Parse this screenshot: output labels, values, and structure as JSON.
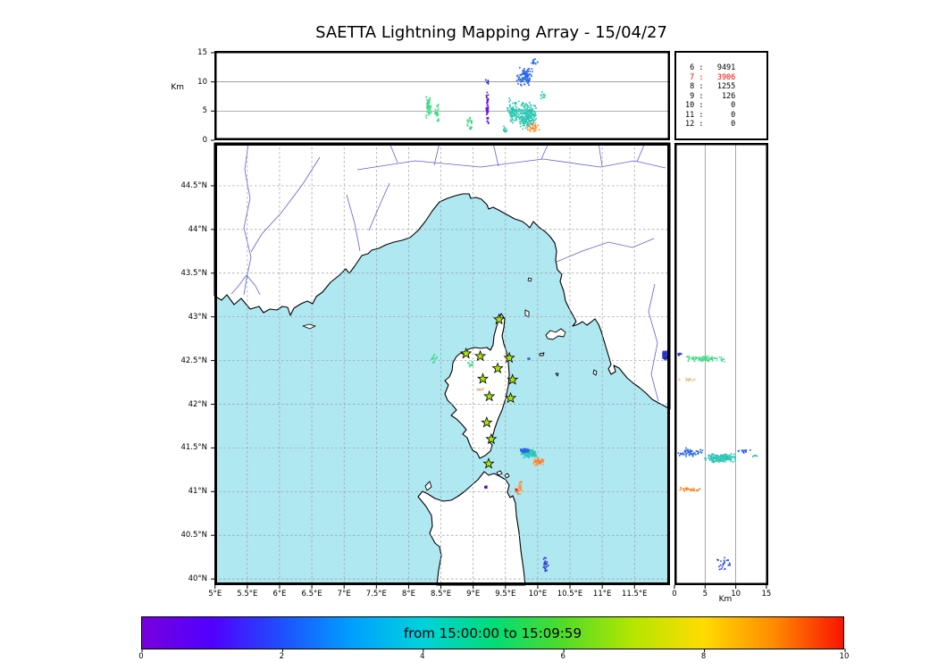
{
  "title": "SAETTA Lightning Mapping Array - 15/04/27",
  "alt_lon_panel": {
    "ylabel": "Km",
    "ytick_labels": [
      "0",
      "5",
      "10",
      "15"
    ],
    "ytick_values": [
      0,
      5,
      10,
      15
    ],
    "grid_values": [
      5,
      10
    ],
    "ymax": 15.3
  },
  "stats_panel": {
    "rows": [
      {
        "label": "6",
        "value": "9491",
        "color": "#000000"
      },
      {
        "label": "7",
        "value": "3906",
        "color": "#ff0000"
      },
      {
        "label": "8",
        "value": "1255",
        "color": "#000000"
      },
      {
        "label": "9",
        "value": "126",
        "color": "#000000"
      },
      {
        "label": "10",
        "value": "0",
        "color": "#000000"
      },
      {
        "label": "11",
        "value": "0",
        "color": "#000000"
      },
      {
        "label": "12",
        "value": "0",
        "color": "#000000"
      }
    ]
  },
  "map_panel": {
    "lon_min": 4.99,
    "lon_max": 12.05,
    "lat_min": 39.93,
    "lat_max": 44.99,
    "lon_tick_labels": [
      "5°E",
      "5.5°E",
      "6°E",
      "6.5°E",
      "7°E",
      "7.5°E",
      "8°E",
      "8.5°E",
      "9°E",
      "9.5°E",
      "10°E",
      "10.5°E",
      "11°E",
      "11.5°E"
    ],
    "lon_tick_values": [
      5,
      5.5,
      6,
      6.5,
      7,
      7.5,
      8,
      8.5,
      9,
      9.5,
      10,
      10.5,
      11,
      11.5
    ],
    "lat_tick_labels": [
      "40°N",
      "40.5°N",
      "41°N",
      "41.5°N",
      "42°N",
      "42.5°N",
      "43°N",
      "43.5°N",
      "44°N",
      "44.5°N"
    ],
    "lat_tick_values": [
      40,
      40.5,
      41,
      41.5,
      42,
      42.5,
      43,
      43.5,
      44,
      44.5
    ],
    "sea_color": "#b0e8f2",
    "land_color": "#ffffff",
    "station_color": "#a8e60a",
    "stations": [
      {
        "lon": 9.4,
        "lat": 42.97
      },
      {
        "lon": 8.89,
        "lat": 42.58
      },
      {
        "lon": 9.11,
        "lat": 42.55
      },
      {
        "lon": 9.56,
        "lat": 42.53
      },
      {
        "lon": 9.38,
        "lat": 42.41
      },
      {
        "lon": 9.15,
        "lat": 42.29
      },
      {
        "lon": 9.61,
        "lat": 42.28
      },
      {
        "lon": 9.25,
        "lat": 42.09
      },
      {
        "lon": 9.58,
        "lat": 42.07
      },
      {
        "lon": 9.21,
        "lat": 41.79
      },
      {
        "lon": 9.28,
        "lat": 41.6
      },
      {
        "lon": 9.24,
        "lat": 41.32
      }
    ]
  },
  "alt_lat_panel": {
    "xlabel": "Km",
    "xtick_labels": [
      "0",
      "5",
      "10",
      "15"
    ],
    "xtick_values": [
      0,
      5,
      10,
      15
    ],
    "grid_values": [
      5,
      10
    ],
    "xmax": 15.3
  },
  "colorbar": {
    "label": "from 15:00:00 to 15:09:59",
    "tick_labels": [
      "0",
      "2",
      "4",
      "6",
      "8",
      "10"
    ],
    "tick_values": [
      0,
      2,
      4,
      6,
      8,
      10
    ],
    "tick_max": 10,
    "gradient": [
      "#7800dc",
      "#5000ff",
      "#1e50ff",
      "#00a0ff",
      "#00d2dc",
      "#00dc78",
      "#50dc28",
      "#b4e600",
      "#ffdc00",
      "#ff8c00",
      "#fa1400"
    ]
  },
  "palettes": {
    "green": [
      "#46dc8c",
      "#32d278",
      "#64e6a0"
    ],
    "teal": [
      "#28c8be",
      "#32d2a0",
      "#3cc8d2",
      "#28bea0"
    ],
    "tealgreen": [
      "#32d28c",
      "#28c8be"
    ],
    "blue": [
      "#2864e6",
      "#2882e6",
      "#3c50ff",
      "#1e6ee0"
    ],
    "navy": [
      "#2830c8",
      "#1e28b4",
      "#3240dc"
    ],
    "bluenavy": [
      "#2864e6",
      "#2832c0",
      "#4646d2"
    ],
    "orange": [
      "#ff8c28",
      "#ff6414",
      "#ffa040"
    ],
    "purple": [
      "#7714e8",
      "#5c0ad8"
    ],
    "paleorange": [
      "#eec8a0",
      "#e0b482"
    ],
    "red": [
      "#ff2810"
    ]
  },
  "chart_data": {
    "type": "scatter",
    "panels": {
      "alt_vs_lon": [
        {
          "lon": 8.31,
          "alt": 5.8,
          "lon_spread": 0.045,
          "alt_spread": 2.2,
          "count": 60,
          "palette": "green"
        },
        {
          "lon": 8.44,
          "alt": 4.6,
          "lon_spread": 0.035,
          "alt_spread": 1.6,
          "count": 28,
          "palette": "green"
        },
        {
          "lon": 8.95,
          "alt": 3.0,
          "lon_spread": 0.05,
          "alt_spread": 1.4,
          "count": 22,
          "palette": "green"
        },
        {
          "lon": 9.22,
          "alt": 5.5,
          "lon_spread": 0.02,
          "alt_spread": 3.4,
          "count": 48,
          "palette": "purple"
        },
        {
          "lon": 9.21,
          "alt": 9.9,
          "lon_spread": 0.03,
          "alt_spread": 0.5,
          "count": 6,
          "palette": "navy"
        },
        {
          "lon": 9.62,
          "alt": 4.9,
          "lon_spread": 0.1,
          "alt_spread": 2.3,
          "count": 90,
          "palette": "teal"
        },
        {
          "lon": 9.83,
          "alt": 4.2,
          "lon_spread": 0.16,
          "alt_spread": 2.6,
          "count": 240,
          "palette": "teal"
        },
        {
          "lon": 9.8,
          "alt": 10.9,
          "lon_spread": 0.14,
          "alt_spread": 1.7,
          "count": 90,
          "palette": "blue"
        },
        {
          "lon": 9.95,
          "alt": 13.3,
          "lon_spread": 0.07,
          "alt_spread": 0.8,
          "count": 12,
          "palette": "blue"
        },
        {
          "lon": 9.93,
          "alt": 2.2,
          "lon_spread": 0.1,
          "alt_spread": 1.2,
          "count": 30,
          "palette": "orange"
        },
        {
          "lon": 10.08,
          "alt": 7.6,
          "lon_spread": 0.05,
          "alt_spread": 0.9,
          "count": 12,
          "palette": "tealgreen"
        },
        {
          "lon": 9.5,
          "alt": 1.6,
          "lon_spread": 0.04,
          "alt_spread": 1.1,
          "count": 12,
          "palette": "teal"
        }
      ],
      "map": [
        {
          "lon": 9.86,
          "lat": 41.43,
          "lon_spread": 0.13,
          "lat_spread": 0.05,
          "count": 160,
          "palette": "teal"
        },
        {
          "lon": 9.8,
          "lat": 41.47,
          "lon_spread": 0.08,
          "lat_spread": 0.035,
          "count": 45,
          "palette": "blue"
        },
        {
          "lon": 10.01,
          "lat": 41.34,
          "lon_spread": 0.09,
          "lat_spread": 0.05,
          "count": 40,
          "palette": "orange"
        },
        {
          "lon": 9.72,
          "lat": 41.05,
          "lon_spread": 0.05,
          "lat_spread": 0.09,
          "count": 20,
          "palette": "orange"
        },
        {
          "lon": 9.67,
          "lat": 41.02,
          "lon_spread": 0.012,
          "lat_spread": 0.012,
          "count": 4,
          "palette": "red",
          "size": 2.4
        },
        {
          "lon": 9.2,
          "lat": 41.05,
          "lon_spread": 0.012,
          "lat_spread": 0.012,
          "count": 4,
          "palette": "purple",
          "size": 2.6
        },
        {
          "lon": 11.99,
          "lat": 42.56,
          "lon_spread": 0.055,
          "lat_spread": 0.05,
          "count": 140,
          "palette": "navy",
          "size": 2.2
        },
        {
          "lon": 10.12,
          "lat": 40.17,
          "lon_spread": 0.05,
          "lat_spread": 0.1,
          "count": 26,
          "palette": "bluenavy"
        },
        {
          "lon": 8.4,
          "lat": 42.52,
          "lon_spread": 0.06,
          "lat_spread": 0.05,
          "count": 16,
          "palette": "green"
        },
        {
          "lon": 8.96,
          "lat": 42.46,
          "lon_spread": 0.05,
          "lat_spread": 0.04,
          "count": 12,
          "palette": "green"
        },
        {
          "lon": 9.1,
          "lat": 42.17,
          "lon_spread": 0.09,
          "lat_spread": 0.02,
          "count": 16,
          "palette": "paleorange"
        },
        {
          "lon": 9.87,
          "lat": 42.52,
          "lon_spread": 0.03,
          "lat_spread": 0.015,
          "count": 6,
          "palette": "blue"
        }
      ],
      "alt_vs_lat": [
        {
          "alt": 5.0,
          "lat": 42.52,
          "alt_spread": 3.4,
          "lat_spread": 0.035,
          "count": 90,
          "palette": "green"
        },
        {
          "alt": 2.2,
          "lat": 42.28,
          "alt_spread": 1.6,
          "lat_spread": 0.02,
          "count": 16,
          "palette": "paleorange"
        },
        {
          "alt": 2.6,
          "lat": 41.45,
          "alt_spread": 2.2,
          "lat_spread": 0.05,
          "count": 60,
          "palette": "blue"
        },
        {
          "alt": 7.6,
          "lat": 41.38,
          "alt_spread": 2.7,
          "lat_spread": 0.055,
          "count": 190,
          "palette": "teal"
        },
        {
          "alt": 13.1,
          "lat": 41.41,
          "alt_spread": 0.7,
          "lat_spread": 0.012,
          "count": 9,
          "palette": "teal"
        },
        {
          "alt": 2.6,
          "lat": 41.02,
          "alt_spread": 2.2,
          "lat_spread": 0.03,
          "count": 26,
          "palette": "orange"
        },
        {
          "alt": 8.2,
          "lat": 40.17,
          "alt_spread": 1.5,
          "lat_spread": 0.08,
          "count": 22,
          "palette": "bluenavy"
        },
        {
          "alt": 0.8,
          "lat": 42.57,
          "alt_spread": 0.6,
          "lat_spread": 0.03,
          "count": 8,
          "palette": "navy"
        },
        {
          "alt": 11.4,
          "lat": 41.46,
          "alt_spread": 1.3,
          "lat_spread": 0.02,
          "count": 14,
          "palette": "blue"
        }
      ]
    }
  }
}
